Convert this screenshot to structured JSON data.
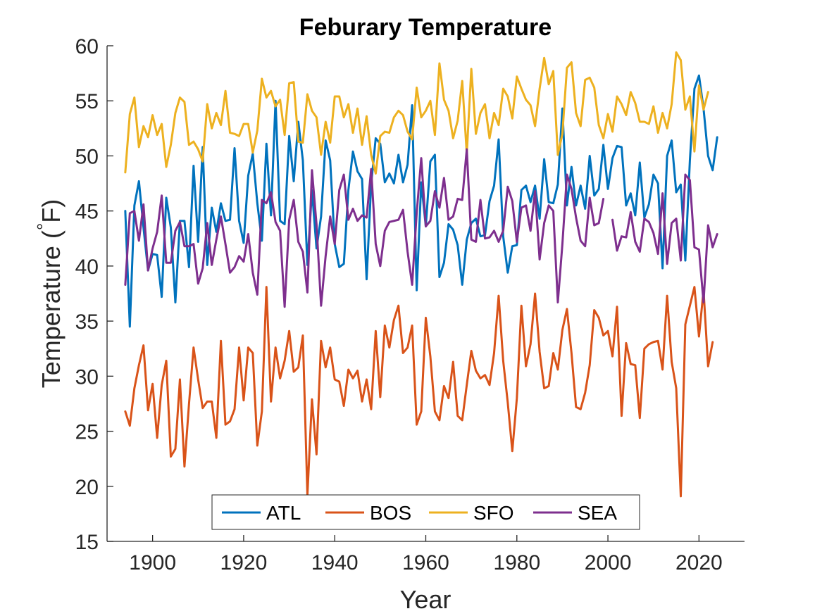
{
  "chart_data": {
    "type": "line",
    "title": "Feburary Temperature",
    "xlabel": "Year",
    "ylabel": "Temperature (°F)",
    "ylabel_parts": {
      "pre": "Temperature (",
      "deg": "°",
      "post": "F)"
    },
    "xlim": [
      1890,
      2030
    ],
    "ylim": [
      15,
      60
    ],
    "xticks": [
      1900,
      1920,
      1940,
      1960,
      1980,
      2000,
      2020
    ],
    "yticks": [
      15,
      20,
      25,
      30,
      35,
      40,
      45,
      50,
      55,
      60
    ],
    "x_start": 1894,
    "grid": false,
    "legend_position": "bottom-center",
    "legend_orientation": "horizontal",
    "series": [
      {
        "name": "ATL",
        "color": "#0072bd",
        "values": [
          45.0,
          34.5,
          45.5,
          47.7,
          43.5,
          39.6,
          41.1,
          41.0,
          37.2,
          46.2,
          43.5,
          36.7,
          44.1,
          44.1,
          39.9,
          49.1,
          42.2,
          50.8,
          40.1,
          45.3,
          43.1,
          45.7,
          44.1,
          44.2,
          50.7,
          44.1,
          42.1,
          48.2,
          50.2,
          45.7,
          42.3,
          51.1,
          44.6,
          55.0,
          44.1,
          43.8,
          51.8,
          47.7,
          53.1,
          49.6,
          40.1,
          46.9,
          41.6,
          44.5,
          51.4,
          49.6,
          42.0,
          39.9,
          40.2,
          46.9,
          50.4,
          48.6,
          47.9,
          38.8,
          47.4,
          51.6,
          51.1,
          47.6,
          48.4,
          47.5,
          50.1,
          47.6,
          49.2,
          54.6,
          37.8,
          47.6,
          43.6,
          49.5,
          50.1,
          39.0,
          40.3,
          43.8,
          43.3,
          41.9,
          38.3,
          42.4,
          43.9,
          44.3,
          42.7,
          42.8,
          45.9,
          47.3,
          51.5,
          42.7,
          39.4,
          41.8,
          41.9,
          46.9,
          47.3,
          45.8,
          47.3,
          44.3,
          49.7,
          45.8,
          45.7,
          47.4,
          54.3,
          45.5,
          49.0,
          45.5,
          47.3,
          45.2,
          50.0,
          46.4,
          47.0,
          51.0,
          47.0,
          49.8,
          50.9,
          50.8,
          45.5,
          46.6,
          44.6,
          49.4,
          44.4,
          45.6,
          48.3,
          47.5,
          39.8,
          50.0,
          51.4,
          46.7,
          47.4,
          40.5,
          49.6,
          56.1,
          57.3,
          54.3,
          50.0,
          48.7,
          51.7
        ]
      },
      {
        "name": "BOS",
        "color": "#d95319",
        "values": [
          26.8,
          25.5,
          28.9,
          31.0,
          32.8,
          26.9,
          29.3,
          24.4,
          29.2,
          31.4,
          22.7,
          23.4,
          29.7,
          21.8,
          27.5,
          32.6,
          29.7,
          27.1,
          27.7,
          27.7,
          24.4,
          33.2,
          25.6,
          25.9,
          27.0,
          32.6,
          27.8,
          32.6,
          32.1,
          23.7,
          26.8,
          38.1,
          27.7,
          32.6,
          29.8,
          31.4,
          34.1,
          30.4,
          30.8,
          33.7,
          19.2,
          27.9,
          22.9,
          33.2,
          30.8,
          32.6,
          29.7,
          29.5,
          27.3,
          30.6,
          29.8,
          30.5,
          27.7,
          29.7,
          27.0,
          34.1,
          28.1,
          34.6,
          32.6,
          35.1,
          36.4,
          32.1,
          32.6,
          34.6,
          25.6,
          26.8,
          35.3,
          31.8,
          26.8,
          26.0,
          29.1,
          28.0,
          31.3,
          26.4,
          26.0,
          29.2,
          32.3,
          30.5,
          29.8,
          30.1,
          29.2,
          32.1,
          37.3,
          31.4,
          27.6,
          23.2,
          28.0,
          36.4,
          30.9,
          32.9,
          37.5,
          32.2,
          28.9,
          29.1,
          32.1,
          30.6,
          34.2,
          36.1,
          32.1,
          27.2,
          27.0,
          28.5,
          31.0,
          36.0,
          35.3,
          33.7,
          34.1,
          31.8,
          36.3,
          26.4,
          33.0,
          31.1,
          31.0,
          26.2,
          32.5,
          32.9,
          33.1,
          33.2,
          30.6,
          37.3,
          31.3,
          28.9,
          19.1,
          34.7,
          36.4,
          38.1,
          33.6,
          37.8,
          30.9,
          33.1
        ]
      },
      {
        "name": "SFO",
        "color": "#edb120",
        "values": [
          48.5,
          53.8,
          55.3,
          50.8,
          52.7,
          51.7,
          53.7,
          51.9,
          52.9,
          49.0,
          51.0,
          53.9,
          55.3,
          54.9,
          51.0,
          51.3,
          50.6,
          49.5,
          54.7,
          52.5,
          53.9,
          52.8,
          55.9,
          52.1,
          52.0,
          51.8,
          52.9,
          52.9,
          50.3,
          52.3,
          57.0,
          55.3,
          55.9,
          54.5,
          55.1,
          51.9,
          56.6,
          56.7,
          51.3,
          51.2,
          55.6,
          54.1,
          53.5,
          50.1,
          53.1,
          51.2,
          55.4,
          55.4,
          53.5,
          54.7,
          52.1,
          54.3,
          51.0,
          53.6,
          50.1,
          48.4,
          51.8,
          52.2,
          52.1,
          53.5,
          54.1,
          53.7,
          52.2,
          51.5,
          56.2,
          53.5,
          54.1,
          55.0,
          51.9,
          58.4,
          55.1,
          54.1,
          51.6,
          53.2,
          56.8,
          50.2,
          57.9,
          52.0,
          53.9,
          54.7,
          51.6,
          53.9,
          52.8,
          56.1,
          55.4,
          53.4,
          57.2,
          56.1,
          55.1,
          54.6,
          52.7,
          56.1,
          58.9,
          56.5,
          57.7,
          50.1,
          52.0,
          58.0,
          58.5,
          53.9,
          52.7,
          56.9,
          57.1,
          56.2,
          52.8,
          51.6,
          53.8,
          52.2,
          55.4,
          54.7,
          53.7,
          55.8,
          54.8,
          53.1,
          53.1,
          52.9,
          54.5,
          52.1,
          53.9,
          52.5,
          54.7,
          59.4,
          58.7,
          54.2,
          55.4,
          50.4,
          56.4,
          54.2,
          55.8
        ]
      },
      {
        "name": "SEA",
        "color": "#7e2f8e",
        "values": [
          38.3,
          44.8,
          45.0,
          42.3,
          45.6,
          39.6,
          41.6,
          43.1,
          46.4,
          40.3,
          40.3,
          43.2,
          44.0,
          41.8,
          41.8,
          42.0,
          38.4,
          39.8,
          43.9,
          40.1,
          42.4,
          44.5,
          42.0,
          39.4,
          39.9,
          40.9,
          40.4,
          42.9,
          39.4,
          37.4,
          46.0,
          45.7,
          46.7,
          44.0,
          43.2,
          36.3,
          44.2,
          46.0,
          42.2,
          41.3,
          37.6,
          48.7,
          43.8,
          36.4,
          40.9,
          44.5,
          42.0,
          46.9,
          48.3,
          44.2,
          45.2,
          44.1,
          44.6,
          44.4,
          48.8,
          42.0,
          40.0,
          43.2,
          44.0,
          44.1,
          44.2,
          45.1,
          41.3,
          38.3,
          44.8,
          49.8,
          43.6,
          44.1,
          46.8,
          45.3,
          48.0,
          44.2,
          44.5,
          46.1,
          46.0,
          50.6,
          42.4,
          42.2,
          46.0,
          42.5,
          42.6,
          43.2,
          42.2,
          43.2,
          47.2,
          45.9,
          42.2,
          45.3,
          45.5,
          43.2,
          46.8,
          40.6,
          43.9,
          45.5,
          45.0,
          36.7,
          42.0,
          48.3,
          47.0,
          44.4,
          42.3,
          41.8,
          46.2,
          43.7,
          43.9,
          46.1,
          null,
          44.2,
          41.4,
          42.7,
          42.6,
          44.9,
          42.2,
          41.3,
          44.3,
          44.0,
          43.0,
          41.1,
          46.6,
          40.2,
          43.9,
          44.3,
          40.5,
          48.3,
          47.8,
          41.7,
          41.5,
          36.7,
          43.7,
          41.7,
          42.9
        ]
      }
    ]
  }
}
